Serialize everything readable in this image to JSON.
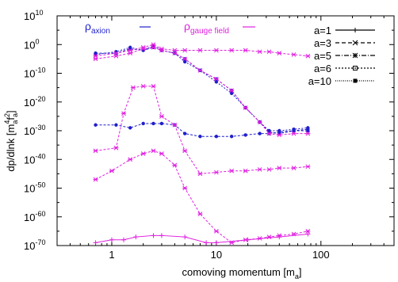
{
  "chart_data": {
    "type": "line",
    "title": "",
    "xlabel": "comoving momentum [m",
    "xlabel_sub": "a",
    "xlabel_tail": "]",
    "ylabel_parts": [
      "dp/dlnk [m",
      "a",
      "4",
      "f",
      "a",
      "2",
      "]"
    ],
    "x_scale": "log",
    "y_scale": "log",
    "xlim": [
      0.3,
      500
    ],
    "ylim_exponent": [
      -70,
      10
    ],
    "x_ticks": [
      {
        "value": 1,
        "label": "1"
      },
      {
        "value": 10,
        "label": "10"
      },
      {
        "value": 100,
        "label": "100"
      }
    ],
    "y_ticks": [
      {
        "exp": 10,
        "base": "10",
        "sup": "10"
      },
      {
        "exp": 0,
        "base": "10",
        "sup": "0"
      },
      {
        "exp": -10,
        "base": "10",
        "sup": "-10"
      },
      {
        "exp": -20,
        "base": "10",
        "sup": "-20"
      },
      {
        "exp": -30,
        "base": "10",
        "sup": "-30"
      },
      {
        "exp": -40,
        "base": "10",
        "sup": "-40"
      },
      {
        "exp": -50,
        "base": "10",
        "sup": "-50"
      },
      {
        "exp": -60,
        "base": "10",
        "sup": "-60"
      },
      {
        "exp": -70,
        "base": "10",
        "sup": "-70"
      }
    ],
    "annotations": [
      {
        "base": "ρ",
        "sub": "axion",
        "color": "#1f1fcc"
      },
      {
        "base": "ρ",
        "sub": "gauge field",
        "color": "#e020e0"
      }
    ],
    "legend": {
      "placement": "top-right",
      "entries": [
        {
          "label": "a=1",
          "style": "solid",
          "marker": "+"
        },
        {
          "label": "a=3",
          "style": "dash",
          "marker": "x"
        },
        {
          "label": "a=5",
          "style": "dash-dot",
          "marker": "star"
        },
        {
          "label": "a=6",
          "style": "dot",
          "marker": "square"
        },
        {
          "label": "a=10",
          "style": "dot-dense",
          "marker": "filled-square"
        }
      ]
    },
    "colors": {
      "axion": "#1f1fcc",
      "gauge_field": "#e020e0",
      "axis": "#000000"
    },
    "series": [
      {
        "color": "#1f1fcc",
        "dash": "3,2",
        "marker": "circle",
        "points": [
          [
            0.7,
            -3
          ],
          [
            1.1,
            -3
          ],
          [
            1.5,
            -1.5
          ],
          [
            2.0,
            -2
          ],
          [
            2.5,
            -1
          ],
          [
            3.0,
            -2
          ],
          [
            4.0,
            -3
          ],
          [
            5.0,
            -5
          ],
          [
            7.0,
            -9
          ],
          [
            10.0,
            -12
          ],
          [
            14.0,
            -16
          ],
          [
            19.0,
            -22
          ],
          [
            26.0,
            -27
          ],
          [
            32.0,
            -30.5
          ],
          [
            40.0,
            -31
          ],
          [
            55.0,
            -30
          ],
          [
            75.0,
            -30
          ]
        ]
      },
      {
        "color": "#1f1fcc",
        "dash": "2,2",
        "marker": "circle",
        "points": [
          [
            0.7,
            -3.5
          ],
          [
            1.1,
            -2.5
          ],
          [
            1.5,
            -1
          ],
          [
            2.0,
            -2
          ],
          [
            2.5,
            -0.5
          ],
          [
            3.0,
            -2
          ],
          [
            4.0,
            -3
          ],
          [
            5.0,
            -6
          ],
          [
            7.0,
            -9
          ],
          [
            10.0,
            -13
          ],
          [
            14.0,
            -17
          ],
          [
            19.0,
            -22
          ],
          [
            26.0,
            -27
          ],
          [
            32.0,
            -30
          ],
          [
            40.0,
            -30
          ],
          [
            55.0,
            -29.5
          ],
          [
            75.0,
            -29
          ]
        ]
      },
      {
        "color": "#1f1fcc",
        "dash": "3,2",
        "marker": "circle",
        "points": [
          [
            0.7,
            -28
          ],
          [
            1.1,
            -28
          ],
          [
            1.5,
            -29
          ],
          [
            2.0,
            -27.5
          ],
          [
            2.5,
            -27.5
          ],
          [
            3.0,
            -27.5
          ],
          [
            4.0,
            -28
          ],
          [
            5.0,
            -31
          ],
          [
            7.0,
            -32
          ],
          [
            10.0,
            -32
          ],
          [
            14.0,
            -32
          ],
          [
            19.0,
            -31.5
          ],
          [
            26.0,
            -31
          ],
          [
            32.0,
            -31
          ],
          [
            40.0,
            -30.5
          ],
          [
            55.0,
            -30
          ],
          [
            75.0,
            -29.5
          ]
        ]
      },
      {
        "color": "#e020e0",
        "dash": "3,2",
        "marker": "star",
        "points": [
          [
            0.7,
            -4
          ],
          [
            1.1,
            -3
          ],
          [
            1.5,
            -2
          ],
          [
            2.0,
            -1
          ],
          [
            2.5,
            0
          ],
          [
            3.0,
            -1.5
          ],
          [
            4.0,
            -2
          ],
          [
            5.0,
            -2
          ],
          [
            7.0,
            -2
          ],
          [
            10.0,
            -2
          ],
          [
            14.0,
            -2
          ],
          [
            19.0,
            -2
          ],
          [
            26.0,
            -2.5
          ],
          [
            32.0,
            -2.5
          ],
          [
            40.0,
            -3
          ],
          [
            55.0,
            -3.5
          ],
          [
            75.0,
            -4
          ]
        ]
      },
      {
        "color": "#e020e0",
        "dash": "3,2",
        "marker": "star",
        "points": [
          [
            0.7,
            -5
          ],
          [
            1.1,
            -4
          ],
          [
            1.5,
            -3
          ],
          [
            2.0,
            -1.5
          ],
          [
            2.5,
            -1
          ],
          [
            3.0,
            -2
          ],
          [
            4.0,
            -3
          ],
          [
            5.0,
            -5
          ],
          [
            7.0,
            -9
          ],
          [
            10.0,
            -12
          ],
          [
            14.0,
            -16
          ],
          [
            19.0,
            -22
          ],
          [
            26.0,
            -27
          ],
          [
            32.0,
            -31
          ],
          [
            40.0,
            -31.5
          ],
          [
            55.0,
            -31
          ],
          [
            75.0,
            -31
          ]
        ]
      },
      {
        "color": "#e020e0",
        "dash": "3,2",
        "marker": "star",
        "points": [
          [
            0.7,
            -37
          ],
          [
            1.1,
            -36
          ],
          [
            1.3,
            -24
          ],
          [
            1.6,
            -15
          ],
          [
            2.0,
            -14.5
          ],
          [
            2.5,
            -14.5
          ],
          [
            3.0,
            -25
          ],
          [
            4.0,
            -28
          ],
          [
            5.0,
            -37
          ],
          [
            7.0,
            -45
          ],
          [
            10.0,
            -44.5
          ],
          [
            14.0,
            -44
          ],
          [
            19.0,
            -44
          ],
          [
            26.0,
            -43.5
          ],
          [
            32.0,
            -43.5
          ],
          [
            40.0,
            -43
          ],
          [
            55.0,
            -43
          ],
          [
            75.0,
            -42.5
          ]
        ]
      },
      {
        "color": "#e020e0",
        "dash": "3,2",
        "marker": "star",
        "points": [
          [
            0.7,
            -47
          ],
          [
            1.0,
            -44
          ],
          [
            1.5,
            -40
          ],
          [
            2.0,
            -38
          ],
          [
            2.5,
            -37
          ],
          [
            3.0,
            -38
          ],
          [
            4.0,
            -42
          ],
          [
            5.0,
            -50
          ],
          [
            7.0,
            -59
          ],
          [
            10.0,
            -65
          ],
          [
            14.0,
            -69
          ],
          [
            19.0,
            -68
          ],
          [
            26.0,
            -67.5
          ],
          [
            32.0,
            -67
          ],
          [
            40.0,
            -66.5
          ],
          [
            55.0,
            -66
          ],
          [
            75.0,
            -65
          ]
        ]
      },
      {
        "color": "#e020e0",
        "dash": "",
        "marker": "plus",
        "points": [
          [
            0.7,
            -69
          ],
          [
            1.0,
            -68
          ],
          [
            1.3,
            -68
          ],
          [
            1.7,
            -67
          ],
          [
            2.5,
            -66.5
          ],
          [
            3.0,
            -66.5
          ],
          [
            5.0,
            -67
          ],
          [
            8.0,
            -69
          ],
          [
            10.0,
            -69
          ],
          [
            20.0,
            -68
          ],
          [
            40.0,
            -67
          ],
          [
            75.0,
            -66
          ]
        ]
      }
    ]
  }
}
